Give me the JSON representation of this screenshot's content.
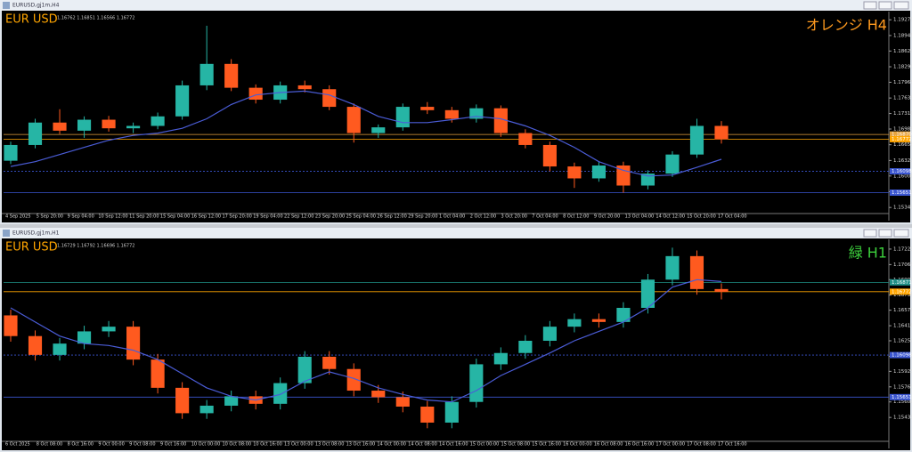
{
  "chart_data": [
    {
      "type": "candlestick",
      "window_title": "EURUSD,gj1m,H4",
      "symbol": "EUR USD",
      "quote": "1.16762 1.16851 1.16566 1.16772",
      "label": "オレンジ H4",
      "label_color": "#ff9a1f",
      "ylim": [
        1.1525,
        1.1941
      ],
      "yticks": [
        {
          "value": 1.19275,
          "label": "1.19275"
        },
        {
          "value": 1.18945,
          "label": "1.18945"
        },
        {
          "value": 1.1862,
          "label": "1.18620"
        },
        {
          "value": 1.1829,
          "label": "1.18290"
        },
        {
          "value": 1.17965,
          "label": "1.17965"
        },
        {
          "value": 1.17635,
          "label": "1.17635"
        },
        {
          "value": 1.1731,
          "label": "1.17310"
        },
        {
          "value": 1.16985,
          "label": "1.16985"
        },
        {
          "value": 1.16655,
          "label": "1.16655"
        },
        {
          "value": 1.16325,
          "label": "1.16325"
        },
        {
          "value": 1.16,
          "label": "1.16000"
        },
        {
          "value": 1.1567,
          "label": "1.15670"
        },
        {
          "value": 1.1534,
          "label": "1.15340"
        }
      ],
      "x_labels": [
        "4 Sep 2025",
        "5 Sep 20:00",
        "9 Sep 04:00",
        "10 Sep 12:00",
        "11 Sep 20:00",
        "15 Sep 04:00",
        "16 Sep 12:00",
        "17 Sep 20:00",
        "19 Sep 04:00",
        "22 Sep 12:00",
        "23 Sep 20:00",
        "25 Sep 04:00",
        "26 Sep 12:00",
        "29 Sep 20:00",
        "1 Oct 04:00",
        "2 Oct 12:00",
        "3 Oct 20:00",
        "7 Oct 04:00",
        "8 Oct 12:00",
        "9 Oct 20:00",
        "13 Oct 04:00",
        "14 Oct 12:00",
        "15 Oct 20:00",
        "17 Oct 04:00"
      ],
      "up_color": "#26b5a5",
      "down_color": "#ff5a1f",
      "ma_color": "#4a5cd6",
      "open": [
        1.1632,
        1.1665,
        1.1712,
        1.1695,
        1.1718,
        1.17,
        1.1705,
        1.1725,
        1.179,
        1.1835,
        1.1785,
        1.176,
        1.179,
        1.1782,
        1.1745,
        1.169,
        1.1702,
        1.1745,
        1.1738,
        1.172,
        1.1742,
        1.169,
        1.1665,
        1.162,
        1.1595,
        1.1622,
        1.158,
        1.1605,
        1.1645,
        1.1705
      ],
      "high": [
        1.1672,
        1.172,
        1.174,
        1.1725,
        1.1726,
        1.1712,
        1.1733,
        1.18,
        1.1915,
        1.1845,
        1.1792,
        1.1798,
        1.18,
        1.179,
        1.1752,
        1.1708,
        1.1752,
        1.1755,
        1.1745,
        1.175,
        1.1748,
        1.1698,
        1.1672,
        1.1628,
        1.163,
        1.163,
        1.1612,
        1.1652,
        1.172,
        1.1715
      ],
      "low": [
        1.1625,
        1.1658,
        1.1688,
        1.168,
        1.1693,
        1.169,
        1.1698,
        1.1718,
        1.178,
        1.1778,
        1.1752,
        1.1752,
        1.1775,
        1.1738,
        1.167,
        1.168,
        1.1695,
        1.173,
        1.1712,
        1.1712,
        1.1682,
        1.1658,
        1.161,
        1.1575,
        1.1588,
        1.1565,
        1.1572,
        1.1598,
        1.1638,
        1.1668
      ],
      "close": [
        1.1665,
        1.1712,
        1.1695,
        1.1718,
        1.17,
        1.1705,
        1.1725,
        1.179,
        1.1835,
        1.1785,
        1.176,
        1.179,
        1.1782,
        1.1745,
        1.169,
        1.1702,
        1.1745,
        1.1738,
        1.172,
        1.1742,
        1.169,
        1.1665,
        1.162,
        1.1595,
        1.1622,
        1.158,
        1.1605,
        1.1645,
        1.1705,
        1.1677
      ],
      "ma": [
        1.162,
        1.163,
        1.1645,
        1.166,
        1.1675,
        1.1685,
        1.169,
        1.17,
        1.172,
        1.175,
        1.177,
        1.1775,
        1.1778,
        1.177,
        1.175,
        1.1725,
        1.1712,
        1.1712,
        1.1718,
        1.1725,
        1.172,
        1.1705,
        1.1685,
        1.166,
        1.163,
        1.1612,
        1.16,
        1.1602,
        1.1618,
        1.1635
      ],
      "levels": [
        {
          "value": 1.1687,
          "label": "1.16870",
          "color": "#e6a23c",
          "dashed": false
        },
        {
          "value": 1.16772,
          "label": "1.16772",
          "color": "#ffa500",
          "dashed": false
        },
        {
          "value": 1.16098,
          "label": "1.16098",
          "color": "#3a55d0",
          "dashed": true
        },
        {
          "value": 1.15651,
          "label": "1.15651",
          "color": "#3a55d0",
          "dashed": false
        }
      ]
    },
    {
      "type": "candlestick",
      "window_title": "EURUSD,gj1m,H1",
      "symbol": "EUR USD",
      "quote": "1.16729 1.16792 1.16696 1.16772",
      "label": "緑 H1",
      "label_color": "#3ccf3c",
      "ylim": [
        1.152,
        1.173
      ],
      "yticks": [
        {
          "value": 1.17225,
          "label": "1.17225"
        },
        {
          "value": 1.1706,
          "label": "1.17060"
        },
        {
          "value": 1.169,
          "label": "1.16900"
        },
        {
          "value": 1.16735,
          "label": "1.16735"
        },
        {
          "value": 1.16575,
          "label": "1.16575"
        },
        {
          "value": 1.1641,
          "label": "1.16410"
        },
        {
          "value": 1.1625,
          "label": "1.16250"
        },
        {
          "value": 1.16085,
          "label": "1.16085"
        },
        {
          "value": 1.15925,
          "label": "1.15925"
        },
        {
          "value": 1.1576,
          "label": "1.15760"
        },
        {
          "value": 1.156,
          "label": "1.15600"
        },
        {
          "value": 1.15435,
          "label": "1.15435"
        }
      ],
      "x_labels": [
        "6 Oct 2025",
        "8 Oct 08:00",
        "8 Oct 16:00",
        "9 Oct 00:00",
        "9 Oct 08:00",
        "9 Oct 16:00",
        "10 Oct 00:00",
        "10 Oct 08:00",
        "10 Oct 16:00",
        "13 Oct 00:00",
        "13 Oct 08:00",
        "13 Oct 16:00",
        "14 Oct 00:00",
        "14 Oct 08:00",
        "14 Oct 16:00",
        "15 Oct 00:00",
        "15 Oct 08:00",
        "15 Oct 16:00",
        "16 Oct 00:00",
        "16 Oct 08:00",
        "16 Oct 16:00",
        "17 Oct 00:00",
        "17 Oct 08:00",
        "17 Oct 16:00"
      ],
      "up_color": "#26b5a5",
      "down_color": "#ff5a1f",
      "ma_color": "#4a5cd6",
      "open": [
        1.1652,
        1.163,
        1.161,
        1.1622,
        1.1635,
        1.164,
        1.1605,
        1.1575,
        1.1548,
        1.1556,
        1.1566,
        1.1558,
        1.158,
        1.1608,
        1.1595,
        1.1572,
        1.1565,
        1.1555,
        1.1538,
        1.156,
        1.16,
        1.1612,
        1.1625,
        1.164,
        1.1648,
        1.1645,
        1.166,
        1.169,
        1.1715,
        1.168
      ],
      "high": [
        1.1658,
        1.1636,
        1.1628,
        1.1641,
        1.1646,
        1.1646,
        1.1611,
        1.1581,
        1.1562,
        1.1572,
        1.1572,
        1.1586,
        1.1614,
        1.1614,
        1.1601,
        1.1578,
        1.1571,
        1.1561,
        1.1566,
        1.1606,
        1.1618,
        1.1631,
        1.1646,
        1.1654,
        1.1654,
        1.1666,
        1.1696,
        1.1724,
        1.1721,
        1.1686
      ],
      "low": [
        1.1624,
        1.1604,
        1.1604,
        1.1616,
        1.1629,
        1.1599,
        1.1569,
        1.1542,
        1.1542,
        1.155,
        1.1552,
        1.1552,
        1.1574,
        1.1589,
        1.1566,
        1.1559,
        1.1549,
        1.1532,
        1.1532,
        1.1554,
        1.1594,
        1.1606,
        1.1619,
        1.1634,
        1.1639,
        1.1639,
        1.1654,
        1.1684,
        1.1674,
        1.1669
      ],
      "close": [
        1.163,
        1.161,
        1.1622,
        1.1635,
        1.164,
        1.1605,
        1.1575,
        1.1548,
        1.1556,
        1.1566,
        1.1558,
        1.158,
        1.1608,
        1.1595,
        1.1572,
        1.1565,
        1.1555,
        1.1538,
        1.156,
        1.16,
        1.1612,
        1.1625,
        1.164,
        1.1648,
        1.1645,
        1.166,
        1.169,
        1.1715,
        1.168,
        1.1677
      ],
      "ma": [
        1.166,
        1.1645,
        1.163,
        1.1622,
        1.162,
        1.1615,
        1.1605,
        1.159,
        1.1575,
        1.1566,
        1.1562,
        1.1568,
        1.1582,
        1.1592,
        1.1585,
        1.1575,
        1.1568,
        1.1562,
        1.156,
        1.1572,
        1.1588,
        1.16,
        1.1612,
        1.1625,
        1.1635,
        1.1645,
        1.166,
        1.1682,
        1.169,
        1.1688
      ],
      "levels": [
        {
          "value": 1.16871,
          "label": "1.16871",
          "color": "#1f8f86",
          "dashed": false
        },
        {
          "value": 1.16772,
          "label": "1.16772",
          "color": "#ffa500",
          "dashed": false
        },
        {
          "value": 1.16098,
          "label": "1.16098",
          "color": "#3a55d0",
          "dashed": true
        },
        {
          "value": 1.15651,
          "label": "1.15651",
          "color": "#3a55d0",
          "dashed": false
        }
      ]
    }
  ]
}
